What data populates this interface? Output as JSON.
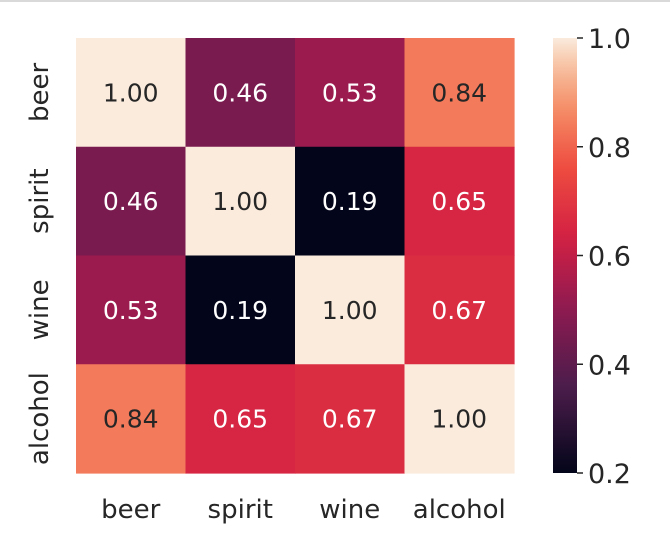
{
  "chart_data": {
    "type": "heatmap",
    "title": "",
    "xlabel": "",
    "ylabel": "",
    "x_categories": [
      "beer",
      "spirit",
      "wine",
      "alcohol"
    ],
    "y_categories": [
      "beer",
      "spirit",
      "wine",
      "alcohol"
    ],
    "values": [
      [
        1.0,
        0.46,
        0.53,
        0.84
      ],
      [
        0.46,
        1.0,
        0.19,
        0.65
      ],
      [
        0.53,
        0.19,
        1.0,
        0.67
      ],
      [
        0.84,
        0.65,
        0.67,
        1.0
      ]
    ],
    "annotation_format": "0.00",
    "colorbar": {
      "min": 0.2,
      "max": 1.0,
      "ticks": [
        1.0,
        0.8,
        0.6,
        0.4,
        0.2
      ],
      "tick_labels": [
        "1.0",
        "0.8",
        "0.6",
        "0.4",
        "0.2"
      ],
      "colormap": "rocket"
    },
    "grid": false,
    "legend": "colorbar-right"
  }
}
